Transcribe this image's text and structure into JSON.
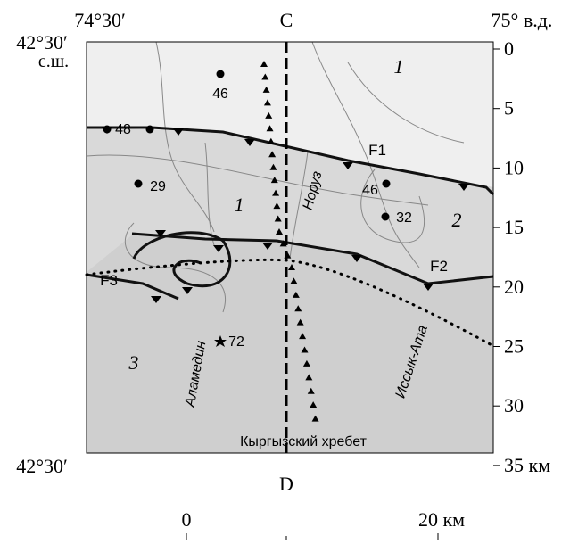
{
  "corners": {
    "top_left": "74°30′",
    "top_center": "C",
    "top_right": "75° в.д.",
    "left_top": "42°30′",
    "left_top_sub": "с.ш.",
    "left_bottom": "42°30′",
    "bottom_center": "D"
  },
  "right_scale": [
    "0",
    "5",
    "10",
    "15",
    "20",
    "25",
    "30",
    "35 км"
  ],
  "map_labels": [
    "46",
    "48",
    "29",
    "1",
    "1",
    "46",
    "32",
    "2",
    "F1",
    "F2",
    "F3",
    "3",
    "72",
    "Аламедин",
    "Норуз",
    "Иссык-Ата",
    "Кыргызский хребет"
  ],
  "scale_bar": {
    "start": "0",
    "end": "20 км"
  }
}
